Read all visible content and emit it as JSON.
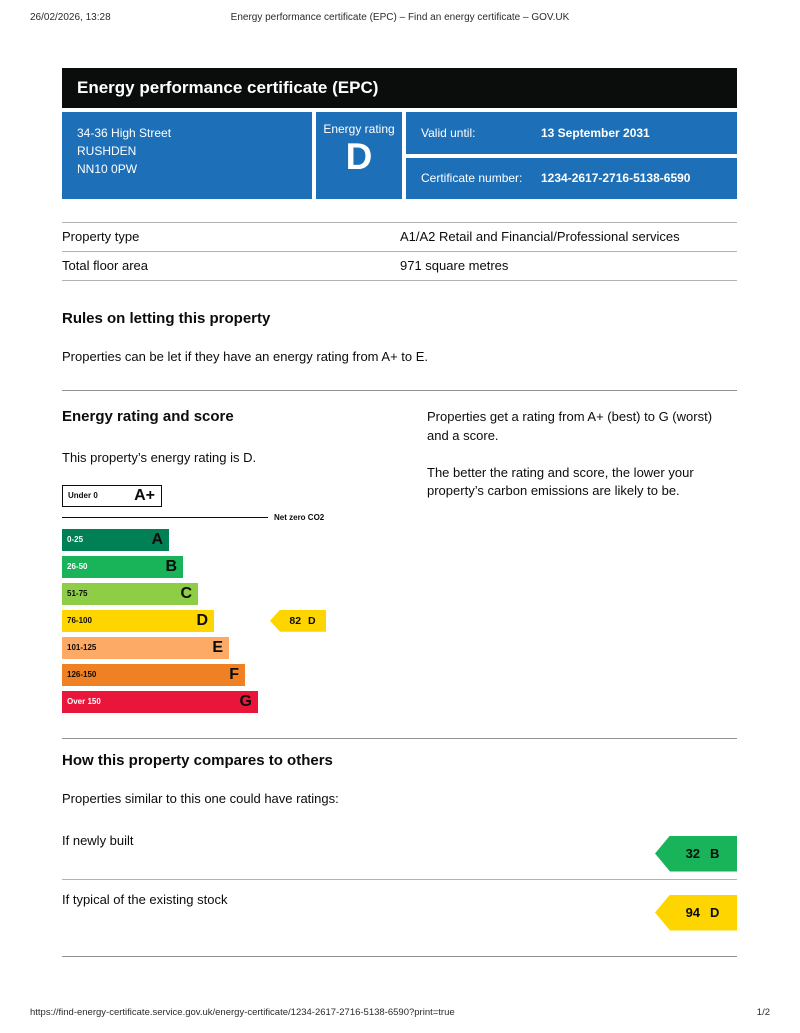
{
  "print": {
    "datetime": "26/02/2026, 13:28",
    "doc_title": "Energy performance certificate (EPC) – Find an energy certificate – GOV.UK",
    "url": "https://find-energy-certificate.service.gov.uk/energy-certificate/1234-2617-2716-5138-6590?print=true",
    "page": "1/2"
  },
  "banner": {
    "title": "Energy performance certificate (EPC)"
  },
  "colors": {
    "govuk_blue": "#1d70b8",
    "govuk_black": "#0b0c0c"
  },
  "summary": {
    "address_lines": [
      "34-36 High Street",
      "RUSHDEN",
      "NN10 0PW"
    ],
    "energy_rating_label": "Energy rating",
    "energy_rating": "D",
    "valid_until_label": "Valid until:",
    "valid_until": "13 September 2031",
    "certificate_number_label": "Certificate number:",
    "certificate_number": "1234-2617-2716-5138-6590"
  },
  "details": {
    "rows": [
      {
        "label": "Property type",
        "value": "A1/A2 Retail and Financial/Professional services"
      },
      {
        "label": "Total floor area",
        "value": "971 square metres"
      }
    ]
  },
  "rules": {
    "heading": "Rules on letting this property",
    "body": "Properties can be let if they have an energy rating from A+ to E."
  },
  "rating_section": {
    "heading": "Energy rating and score",
    "intro": "This property’s energy rating is D.",
    "right_para1": "Properties get a rating from A+ (best) to G (worst) and a score.",
    "right_para2": "The better the rating and score, the lower your property’s carbon emissions are likely to be."
  },
  "chart_data": {
    "type": "epc-bands",
    "title": "Energy rating and score",
    "net_zero_label": "Net zero CO2",
    "bands": [
      {
        "range": "Under 0",
        "letter": "A+",
        "color": "#ffffff",
        "range_color": "#0b0c0c",
        "width": 100
      },
      {
        "range": "0-25",
        "letter": "A",
        "color": "#008054",
        "range_color": "#ffffff",
        "width": 107
      },
      {
        "range": "26-50",
        "letter": "B",
        "color": "#19b459",
        "range_color": "#ffffff",
        "width": 121
      },
      {
        "range": "51-75",
        "letter": "C",
        "color": "#8dce46",
        "range_color": "#0b0c0c",
        "width": 136
      },
      {
        "range": "76-100",
        "letter": "D",
        "color": "#ffd500",
        "range_color": "#0b0c0c",
        "width": 152
      },
      {
        "range": "101-125",
        "letter": "E",
        "color": "#fcaa65",
        "range_color": "#0b0c0c",
        "width": 167
      },
      {
        "range": "126-150",
        "letter": "F",
        "color": "#ef8023",
        "range_color": "#0b0c0c",
        "width": 183
      },
      {
        "range": "Over 150",
        "letter": "G",
        "color": "#e9153b",
        "range_color": "#ffffff",
        "width": 196
      }
    ],
    "current": {
      "score": "82",
      "letter": "D",
      "color": "#ffd500",
      "offset": 208
    }
  },
  "compare": {
    "heading": "How this property compares to others",
    "intro": "Properties similar to this one could have ratings:",
    "rows": [
      {
        "label": "If newly built",
        "score": "32",
        "letter": "B",
        "color": "#19b459"
      },
      {
        "label": "If typical of the existing stock",
        "score": "94",
        "letter": "D",
        "color": "#ffd500"
      }
    ]
  }
}
